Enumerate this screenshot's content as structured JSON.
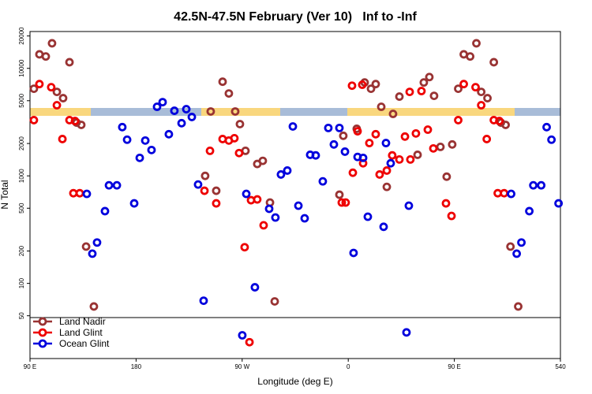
{
  "chart_data": {
    "type": "scatter",
    "title": "42.5N-47.5N February (Ver 10)   Inf to -Inf",
    "x_label": "Longitude (deg E)",
    "y_label": "N Total",
    "log_y": true,
    "legend": "bottom-left",
    "xlim": [
      90,
      540
    ],
    "xticks": [
      {
        "value": 90,
        "label": "90 E"
      },
      180,
      {
        "value": 270,
        "label": "90 W"
      },
      {
        "value": 360,
        "label": "0"
      },
      {
        "value": 450,
        "label": "90 E"
      },
      540
    ],
    "ylim": [
      20,
      22000
    ],
    "yticks": [
      50,
      100,
      200,
      500,
      1000,
      2000,
      5000,
      10000,
      20000
    ],
    "series": [
      {
        "name": "Land Nadir",
        "color": "#993333",
        "x": [
          93.3,
          98,
          103.4,
          108.7,
          112.8,
          118.1,
          123.5,
          129.5,
          133.5,
          137.6,
          144.2,
          238.6,
          243.3,
          248,
          253.4,
          258.7,
          264.1,
          268.1,
          272.8,
          282.8,
          287.5,
          293.6,
          297.6,
          352.5,
          355.8,
          367.2,
          373.9,
          379.3,
          383.3,
          388,
          392.7,
          398,
          403.4,
          418.8,
          424.1,
          428.8,
          432.8,
          438.2,
          443.5,
          448.2,
          453.3,
          458,
          463.4,
          468.7,
          472.8,
          478.1,
          483.5,
          489.5,
          493.5,
          497.6,
          504.2
        ],
        "values": [
          6460,
          13500,
          12900,
          17100,
          6040,
          5280,
          11400,
          3130,
          2980,
          220,
          61,
          1000,
          3970,
          727,
          7510,
          5840,
          3970,
          3030,
          1710,
          1290,
          1380,
          565,
          68,
          668,
          2360,
          2740,
          7390,
          6460,
          7140,
          4390,
          790,
          3770,
          5460,
          1570,
          7390,
          8300,
          5550,
          1860,
          983,
          1960,
          6460,
          13500,
          12900,
          17100,
          6040,
          5280,
          11400,
          3130,
          2980,
          220,
          61
        ]
      },
      {
        "name": "Land Glint",
        "color": "#ee0000",
        "x": [
          93.3,
          98,
          108,
          112.8,
          117.5,
          123.5,
          128.2,
          126.8,
          132.2,
          238,
          242.7,
          248,
          253.4,
          258.7,
          263.4,
          267.4,
          272.1,
          276.2,
          277.5,
          282.8,
          288.2,
          354.5,
          357.8,
          363.2,
          363.9,
          367.9,
          371.9,
          372.6,
          377.9,
          383.3,
          386.6,
          392.7,
          397.3,
          403.4,
          408.1,
          412.7,
          412.1,
          417.4,
          422.1,
          427.5,
          432.2,
          442.9,
          447.6,
          453.3,
          458,
          468,
          472.8,
          477.5,
          483.5,
          488.2,
          486.8,
          492.2
        ],
        "values": [
          3300,
          7140,
          6680,
          4540,
          2200,
          3300,
          3240,
          690,
          690,
          727,
          1710,
          555,
          2200,
          2130,
          2240,
          1630,
          217,
          28.4,
          594,
          604,
          347,
          565,
          565,
          6900,
          1070,
          2600,
          7040,
          1310,
          2020,
          2440,
          1030,
          1120,
          1550,
          1420,
          2320,
          1420,
          6040,
          2480,
          6150,
          2690,
          1800,
          555,
          424,
          3300,
          7140,
          6680,
          4540,
          2200,
          3300,
          3240,
          690,
          690
        ]
      },
      {
        "name": "Ocean Glint",
        "color": "#0000dd",
        "x": [
          138.2,
          142.9,
          146.9,
          153.6,
          157,
          163.7,
          168.3,
          172.4,
          178.4,
          183.1,
          187.8,
          193.1,
          197.8,
          202.5,
          207.8,
          212.5,
          218.6,
          222.6,
          227.3,
          232.6,
          237.3,
          270.1,
          273.5,
          280.8,
          292.9,
          298.2,
          302.9,
          308.3,
          313,
          317.7,
          323,
          327.7,
          332.4,
          338.4,
          343.1,
          347.8,
          352.5,
          357.2,
          364.5,
          367.9,
          372.6,
          376.6,
          390,
          392,
          396,
          409.4,
          411.4,
          498.2,
          502.9,
          506.9,
          513.6,
          517,
          523.7,
          528.3,
          532.4,
          538.4
        ],
        "values": [
          680,
          189,
          240,
          470,
          817,
          817,
          2840,
          2170,
          555,
          1470,
          2130,
          1740,
          4390,
          4850,
          2440,
          4030,
          3090,
          4170,
          3530,
          831,
          69,
          32.9,
          680,
          92,
          494,
          410,
          1030,
          1120,
          2880,
          528,
          403,
          1570,
          1550,
          889,
          2790,
          1960,
          2790,
          1680,
          192,
          1500,
          1470,
          417,
          336,
          2020,
          1310,
          35,
          528,
          680,
          189,
          240,
          470,
          817,
          817,
          2840,
          2170,
          555
        ]
      }
    ]
  }
}
